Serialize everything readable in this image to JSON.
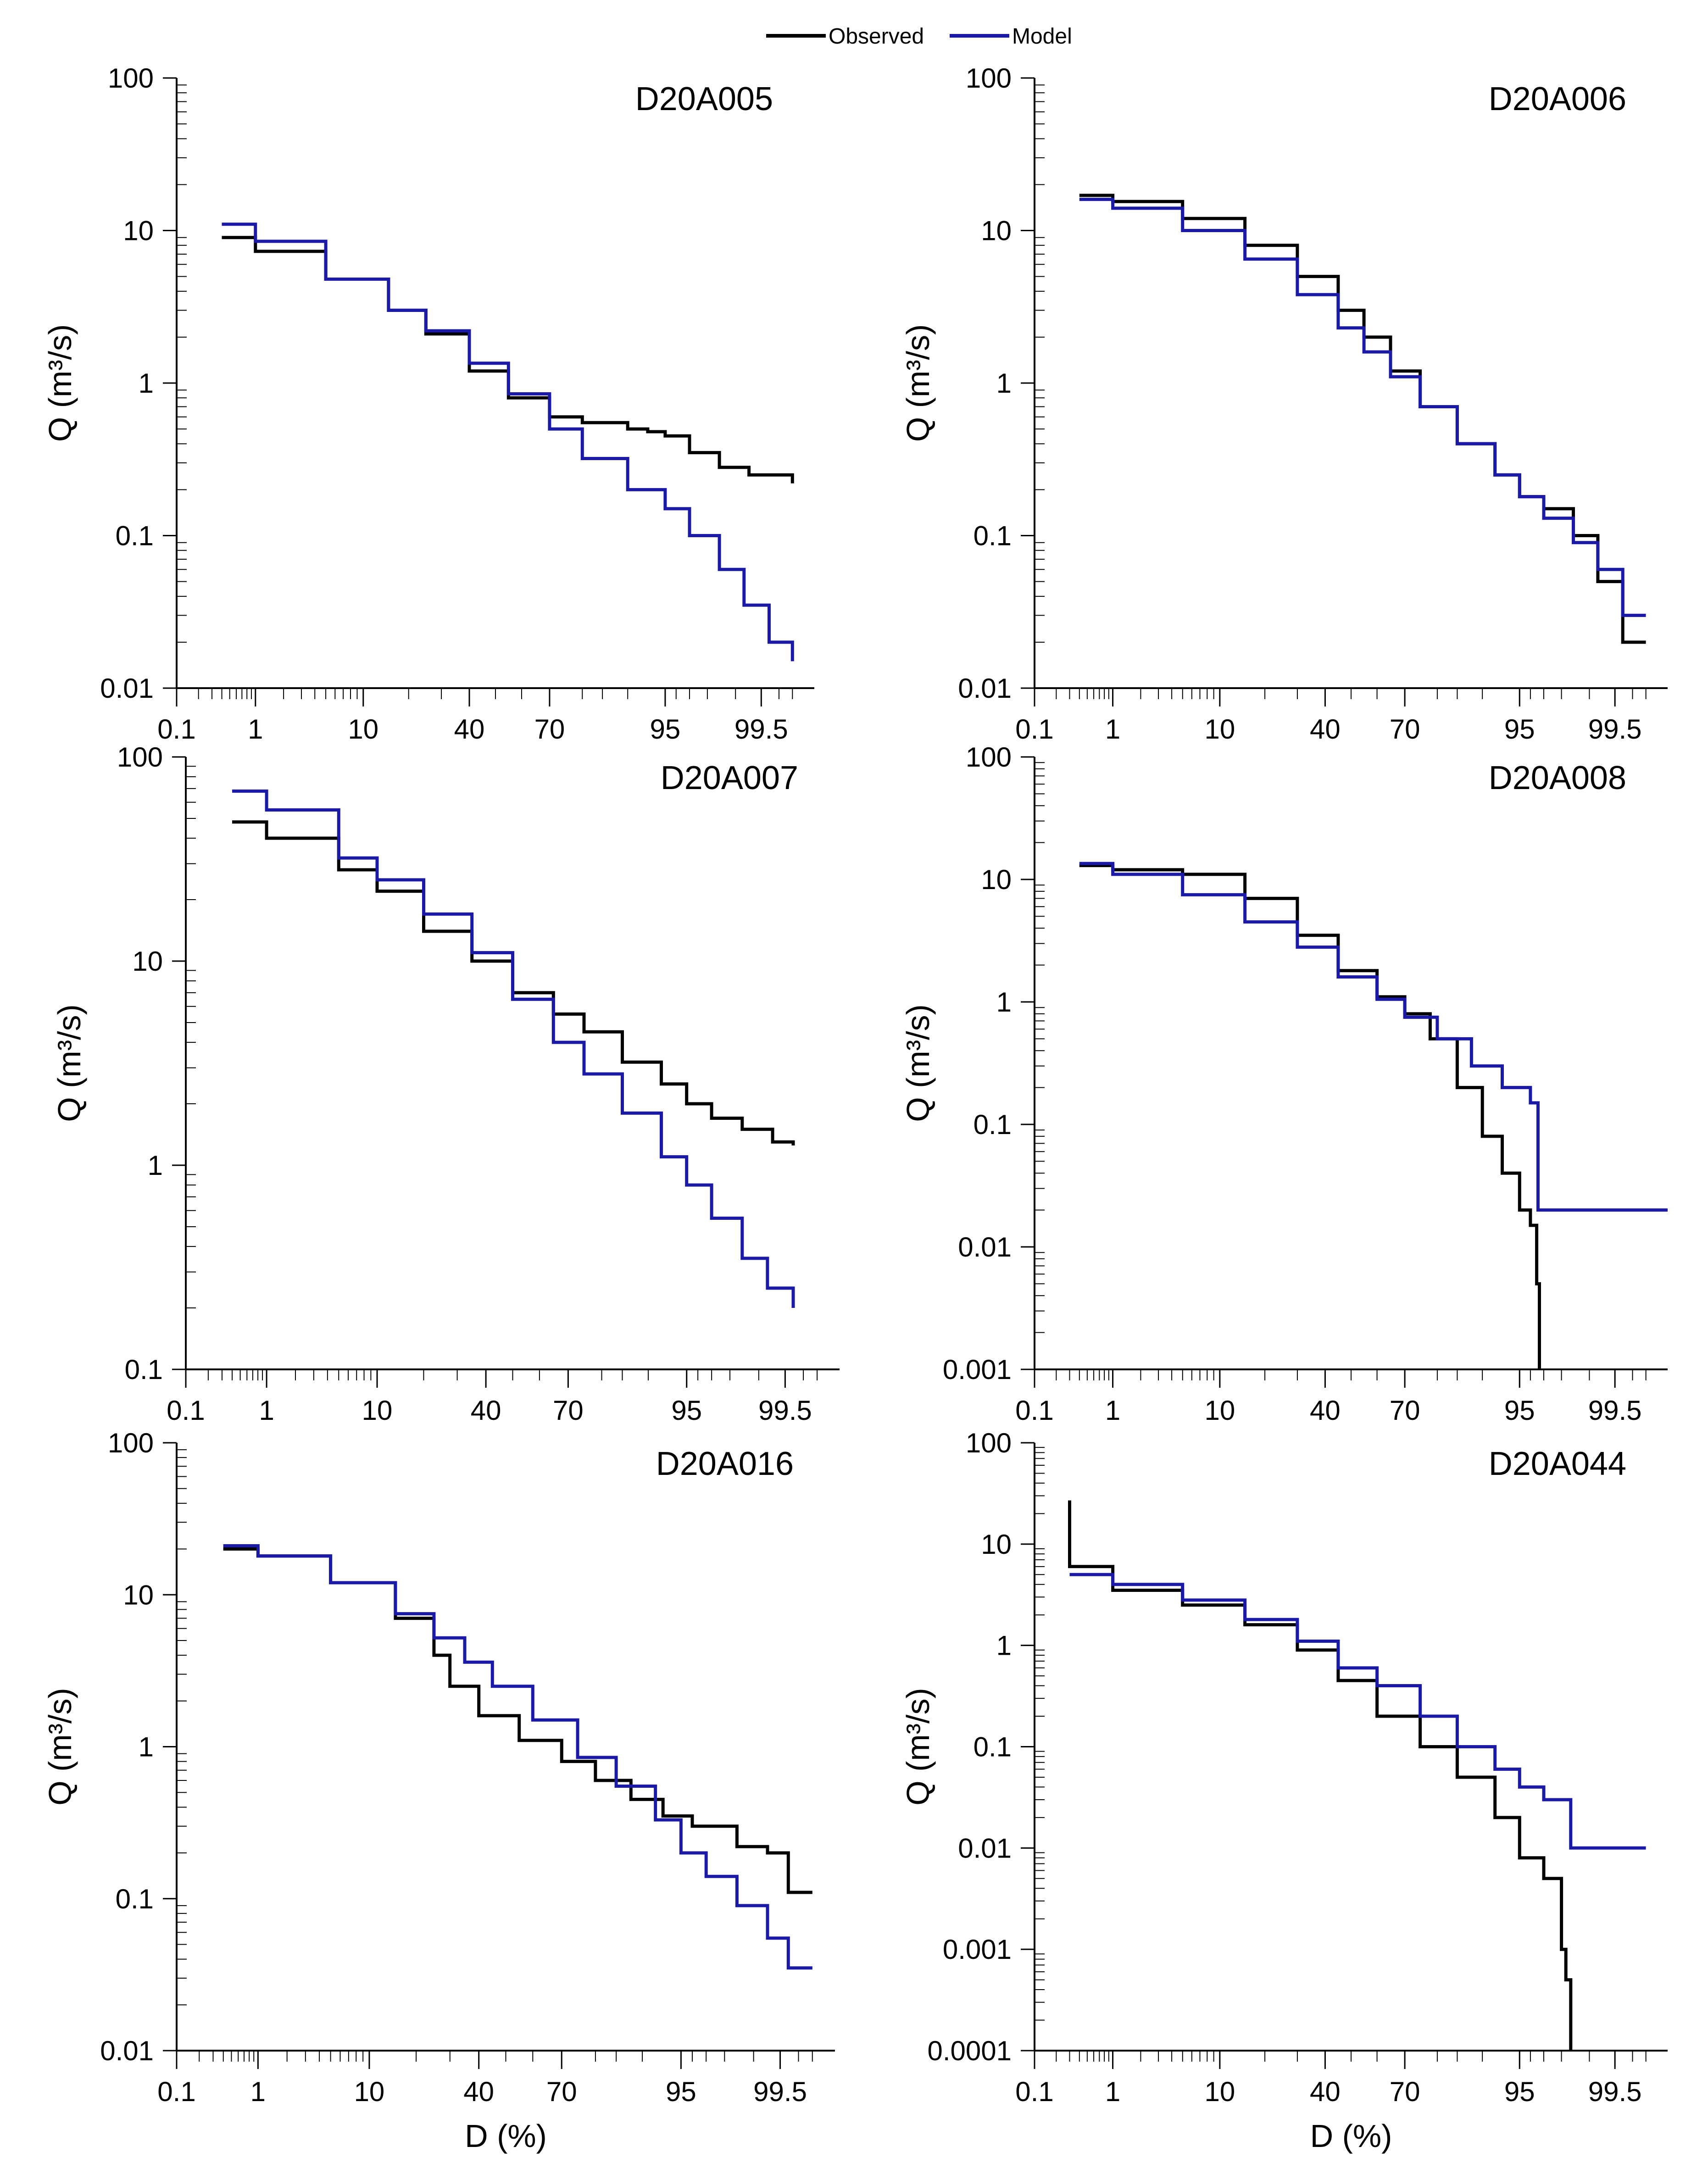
{
  "legend": {
    "observed": "Observed",
    "model": "Model"
  },
  "colors": {
    "observed": "#000000",
    "model": "#1a1aa6"
  },
  "chart_data": [
    {
      "type": "line",
      "title": "D20A005",
      "xlabel": "",
      "ylabel": "Q (m³/s)",
      "ylim": [
        0.01,
        100
      ],
      "xlim": [
        0.1,
        99.9
      ],
      "xticks": [
        "0.1",
        "1",
        "10",
        "40",
        "70",
        "95",
        "99.5"
      ],
      "yticks": [
        "0.01",
        "0.1",
        "1",
        "10",
        "100"
      ],
      "series": [
        {
          "name": "Observed",
          "step": true,
          "x": [
            0.4,
            1,
            5,
            15,
            25,
            40,
            55,
            70,
            80,
            90,
            93,
            95,
            97,
            98.5,
            99.3,
            99.8
          ],
          "y": [
            9,
            7.3,
            4.8,
            3,
            2.1,
            1.2,
            0.8,
            0.6,
            0.55,
            0.5,
            0.48,
            0.45,
            0.35,
            0.28,
            0.25,
            0.22
          ]
        },
        {
          "name": "Model",
          "step": true,
          "x": [
            0.4,
            1,
            5,
            15,
            25,
            40,
            55,
            70,
            80,
            90,
            95,
            97,
            98.5,
            99.2,
            99.6,
            99.8
          ],
          "y": [
            11,
            8.5,
            4.8,
            3,
            2.2,
            1.35,
            0.85,
            0.5,
            0.32,
            0.2,
            0.15,
            0.1,
            0.06,
            0.035,
            0.02,
            0.015
          ]
        }
      ]
    },
    {
      "type": "line",
      "title": "D20A006",
      "xlabel": "",
      "ylabel": "Q (m³/s)",
      "ylim": [
        0.01,
        100
      ],
      "xlim": [
        0.1,
        99.9
      ],
      "xticks": [
        "0.1",
        "1",
        "10",
        "40",
        "70",
        "95",
        "99.5"
      ],
      "yticks": [
        "0.01",
        "0.1",
        "1",
        "10",
        "100"
      ],
      "series": [
        {
          "name": "Observed",
          "step": true,
          "x": [
            0.4,
            1,
            5,
            15,
            30,
            45,
            55,
            65,
            75,
            85,
            92,
            95,
            97,
            98.5,
            99.2,
            99.6,
            99.8
          ],
          "y": [
            17,
            15.5,
            12,
            8,
            5,
            3,
            2,
            1.2,
            0.7,
            0.4,
            0.25,
            0.18,
            0.15,
            0.1,
            0.05,
            0.02,
            0.02
          ]
        },
        {
          "name": "Model",
          "step": true,
          "x": [
            0.4,
            1,
            5,
            15,
            30,
            45,
            55,
            65,
            75,
            85,
            92,
            95,
            97,
            98.5,
            99.2,
            99.6,
            99.8
          ],
          "y": [
            16,
            14,
            10,
            6.5,
            3.8,
            2.3,
            1.6,
            1.1,
            0.7,
            0.4,
            0.25,
            0.18,
            0.13,
            0.09,
            0.06,
            0.03,
            0.03
          ]
        }
      ]
    },
    {
      "type": "line",
      "title": "D20A007",
      "xlabel": "",
      "ylabel": "Q (m³/s)",
      "ylim": [
        0.1,
        100
      ],
      "xlim": [
        0.1,
        99.9
      ],
      "xticks": [
        "0.1",
        "1",
        "10",
        "40",
        "70",
        "95",
        "99.5"
      ],
      "yticks": [
        "0.1",
        "1",
        "10",
        "100"
      ],
      "series": [
        {
          "name": "Observed",
          "step": true,
          "x": [
            0.4,
            1,
            5,
            10,
            20,
            35,
            50,
            65,
            75,
            85,
            92,
            95,
            97,
            98.5,
            99.3,
            99.6
          ],
          "y": [
            48,
            40,
            28,
            22,
            14,
            10,
            7,
            5.5,
            4.5,
            3.2,
            2.5,
            2,
            1.7,
            1.5,
            1.3,
            1.25
          ]
        },
        {
          "name": "Model",
          "step": true,
          "x": [
            0.4,
            1,
            5,
            10,
            20,
            35,
            50,
            65,
            75,
            85,
            92,
            95,
            97,
            98.5,
            99.2,
            99.6
          ],
          "y": [
            68,
            55,
            32,
            25,
            17,
            11,
            6.5,
            4,
            2.8,
            1.8,
            1.1,
            0.8,
            0.55,
            0.35,
            0.25,
            0.2
          ]
        }
      ]
    },
    {
      "type": "line",
      "title": "D20A008",
      "xlabel": "",
      "ylabel": "Q (m³/s)",
      "ylim": [
        0.001,
        100
      ],
      "xlim": [
        0.1,
        99.9
      ],
      "xticks": [
        "0.1",
        "1",
        "10",
        "40",
        "70",
        "95",
        "99.5"
      ],
      "yticks": [
        "0.001",
        "0.01",
        "0.1",
        "1",
        "10",
        "100"
      ],
      "series": [
        {
          "name": "Observed",
          "step": true,
          "x": [
            0.4,
            1,
            5,
            15,
            30,
            45,
            60,
            70,
            78,
            85,
            90,
            93,
            95,
            96,
            96.5,
            96.7
          ],
          "y": [
            13,
            12,
            11,
            7,
            3.5,
            1.8,
            1.1,
            0.8,
            0.5,
            0.2,
            0.08,
            0.04,
            0.02,
            0.015,
            0.005,
            0.001
          ]
        },
        {
          "name": "Model",
          "step": true,
          "x": [
            0.4,
            1,
            5,
            15,
            30,
            45,
            60,
            70,
            80,
            88,
            93,
            96,
            96.6,
            99.9
          ],
          "y": [
            13.5,
            11,
            7.5,
            4.5,
            2.8,
            1.6,
            1.05,
            0.75,
            0.5,
            0.3,
            0.2,
            0.15,
            0.02,
            0.02
          ]
        }
      ]
    },
    {
      "type": "line",
      "title": "D20A016",
      "xlabel": "D (%)",
      "ylabel": "Q (m³/s)",
      "ylim": [
        0.01,
        100
      ],
      "xlim": [
        0.1,
        99.9
      ],
      "xticks": [
        "0.1",
        "1",
        "10",
        "40",
        "70",
        "95",
        "99.5"
      ],
      "yticks": [
        "0.01",
        "0.1",
        "1",
        "10",
        "100"
      ],
      "series": [
        {
          "name": "Observed",
          "step": true,
          "x": [
            0.4,
            1,
            5,
            15,
            25,
            30,
            40,
            55,
            70,
            80,
            88,
            93,
            96,
            98.5,
            99.3,
            99.6,
            99.8
          ],
          "y": [
            20,
            18,
            12,
            7,
            4,
            2.5,
            1.6,
            1.1,
            0.8,
            0.6,
            0.45,
            0.35,
            0.3,
            0.22,
            0.2,
            0.11,
            0.11
          ]
        },
        {
          "name": "Model",
          "step": true,
          "x": [
            0.4,
            1,
            5,
            15,
            25,
            35,
            45,
            60,
            75,
            85,
            92,
            95,
            97,
            98.5,
            99.3,
            99.6,
            99.8
          ],
          "y": [
            21,
            18,
            12,
            7.5,
            5.2,
            3.6,
            2.5,
            1.5,
            0.85,
            0.55,
            0.33,
            0.2,
            0.14,
            0.09,
            0.055,
            0.035,
            0.035
          ]
        }
      ]
    },
    {
      "type": "line",
      "title": "D20A044",
      "xlabel": "D (%)",
      "ylabel": "Q (m³/s)",
      "ylim": [
        0.0001,
        100
      ],
      "xlim": [
        0.1,
        99.9
      ],
      "xticks": [
        "0.1",
        "1",
        "10",
        "40",
        "70",
        "95",
        "99.5"
      ],
      "yticks": [
        "0.0001",
        "0.001",
        "0.01",
        "0.1",
        "1",
        "10",
        "100"
      ],
      "series": [
        {
          "name": "Observed",
          "step": true,
          "x": [
            0.3,
            0.3,
            1,
            5,
            15,
            30,
            45,
            60,
            75,
            85,
            92,
            95,
            97,
            98,
            98.2,
            98.4
          ],
          "y": [
            27,
            6,
            3.5,
            2.5,
            1.6,
            0.9,
            0.45,
            0.2,
            0.1,
            0.05,
            0.02,
            0.008,
            0.005,
            0.001,
            0.0005,
            0.0001
          ]
        },
        {
          "name": "Model",
          "step": true,
          "x": [
            0.3,
            1,
            5,
            15,
            30,
            45,
            60,
            75,
            85,
            92,
            95,
            97,
            98.2,
            98.4,
            99.8
          ],
          "y": [
            5,
            4,
            2.8,
            1.8,
            1.1,
            0.6,
            0.4,
            0.2,
            0.1,
            0.06,
            0.04,
            0.03,
            0.03,
            0.01,
            0.01
          ]
        }
      ]
    }
  ]
}
